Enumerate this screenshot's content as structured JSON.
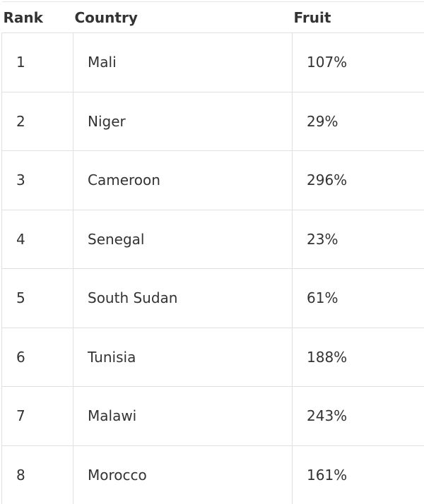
{
  "headers": [
    "Rank",
    "Country",
    "Fruit"
  ],
  "rows": [
    [
      "1",
      "Mali",
      "107%"
    ],
    [
      "2",
      "Niger",
      "29%"
    ],
    [
      "3",
      "Cameroon",
      "296%"
    ],
    [
      "4",
      "Senegal",
      "23%"
    ],
    [
      "5",
      "South Sudan",
      "61%"
    ],
    [
      "6",
      "Tunisia",
      "188%"
    ],
    [
      "7",
      "Malawi",
      "243%"
    ],
    [
      "8",
      "Morocco",
      "161%"
    ]
  ]
}
